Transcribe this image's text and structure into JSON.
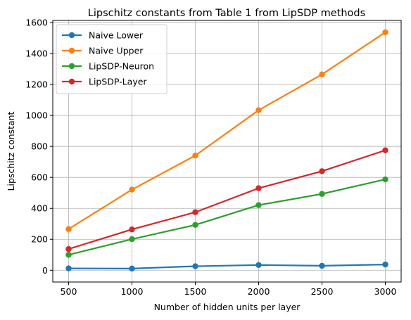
{
  "chart_data": {
    "type": "line",
    "title": "Lipschitz constants from Table 1 from LipSDP methods",
    "xlabel": "Number of hidden units per layer",
    "ylabel": "Lipschitz constant",
    "x": [
      500,
      1000,
      1500,
      2000,
      2500,
      3000
    ],
    "xticks": [
      500,
      1000,
      1500,
      2000,
      2500,
      3000
    ],
    "yticks": [
      0,
      200,
      400,
      600,
      800,
      1000,
      1200,
      1400,
      1600
    ],
    "xlim": [
      375,
      3125
    ],
    "ylim": [
      -76,
      1614
    ],
    "grid": true,
    "legend_position": "top-left",
    "series": [
      {
        "name": "Naive Lower",
        "color": "#1f77b4",
        "values": [
          12,
          11,
          26,
          34,
          29,
          37
        ]
      },
      {
        "name": "Naive Upper",
        "color": "#ff7f0e",
        "values": [
          266,
          521,
          741,
          1034,
          1265,
          1537
        ]
      },
      {
        "name": "LipSDP-Neuron",
        "color": "#2ca02c",
        "values": [
          100,
          201,
          293,
          421,
          493,
          587
        ]
      },
      {
        "name": "LipSDP-Layer",
        "color": "#d62728",
        "values": [
          137,
          264,
          375,
          530,
          640,
          775
        ]
      }
    ]
  }
}
